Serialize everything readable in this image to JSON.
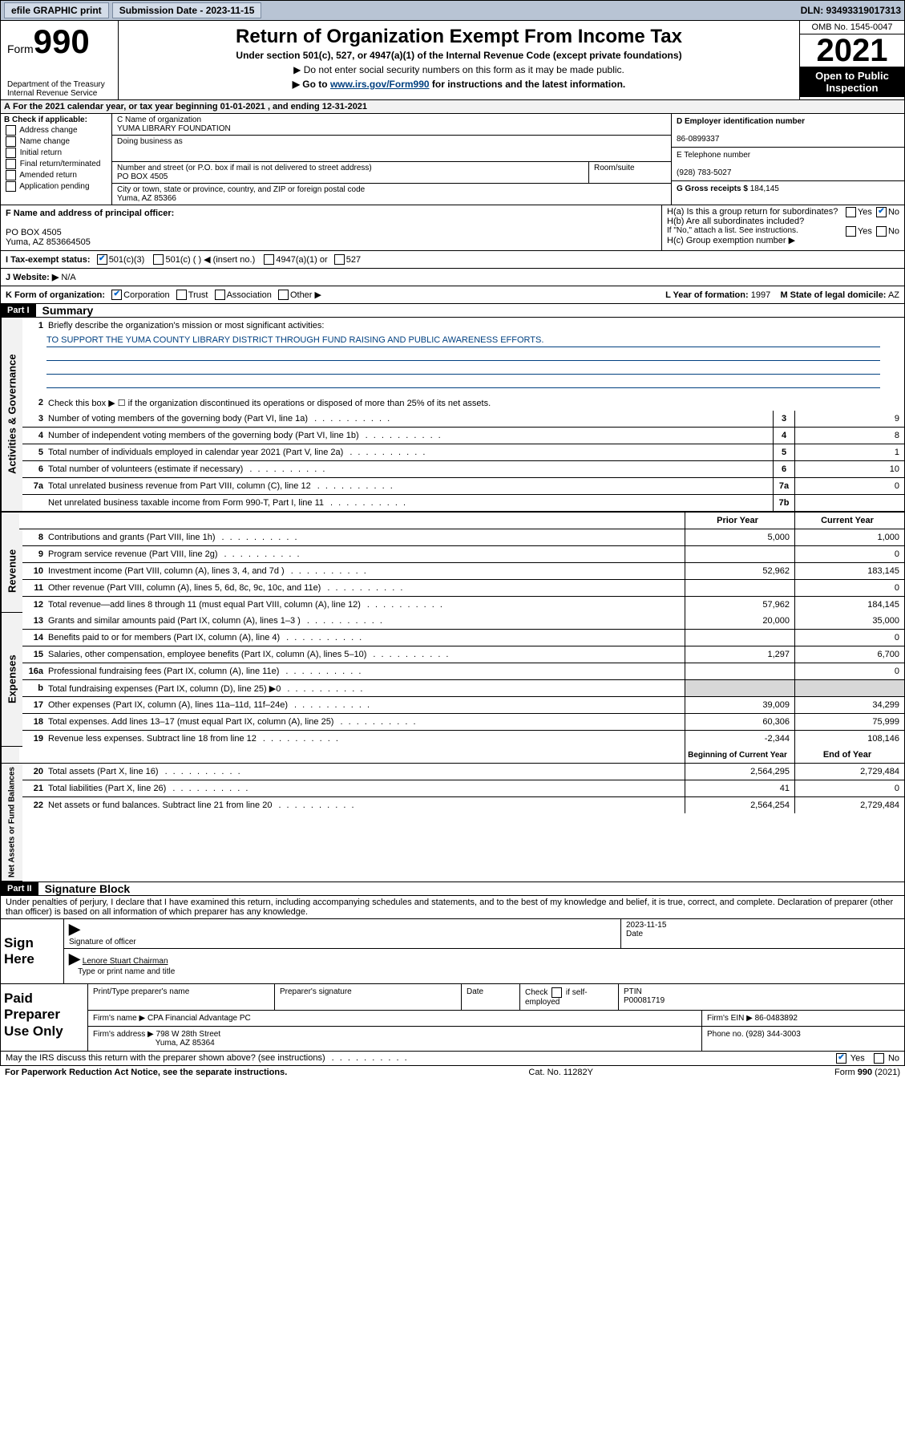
{
  "top_bar": {
    "efile": "efile GRAPHIC print",
    "sub_label": "Submission Date - 2023-11-15",
    "dln": "DLN: 93493319017313"
  },
  "header": {
    "form_word": "Form",
    "form_number": "990",
    "dept": "Department of the Treasury",
    "irs": "Internal Revenue Service",
    "title": "Return of Organization Exempt From Income Tax",
    "subtitle": "Under section 501(c), 527, or 4947(a)(1) of the Internal Revenue Code (except private foundations)",
    "note1": "▶ Do not enter social security numbers on this form as it may be made public.",
    "note2_pre": "▶ Go to ",
    "note2_link": "www.irs.gov/Form990",
    "note2_post": " for instructions and the latest information.",
    "omb": "OMB No. 1545-0047",
    "year": "2021",
    "open_public": "Open to Public Inspection"
  },
  "tax_year": "For the 2021 calendar year, or tax year beginning 01-01-2021  , and ending 12-31-2021",
  "section_b": {
    "title": "B Check if applicable:",
    "items": [
      "Address change",
      "Name change",
      "Initial return",
      "Final return/terminated",
      "Amended return",
      "Application pending"
    ]
  },
  "section_c": {
    "name_label": "C Name of organization",
    "name": "YUMA LIBRARY FOUNDATION",
    "dba_label": "Doing business as",
    "addr_label": "Number and street (or P.O. box if mail is not delivered to street address)",
    "room_label": "Room/suite",
    "addr": "PO BOX 4505",
    "city_label": "City or town, state or province, country, and ZIP or foreign postal code",
    "city": "Yuma, AZ  85366"
  },
  "section_d": {
    "ein_label": "D Employer identification number",
    "ein": "86-0899337",
    "phone_label": "E Telephone number",
    "phone": "(928) 783-5027",
    "gross_label": "G Gross receipts $",
    "gross": "184,145"
  },
  "section_f": {
    "label": "F Name and address of principal officer:",
    "line1": "PO BOX 4505",
    "line2": "Yuma, AZ  853664505"
  },
  "section_h": {
    "a": "H(a) Is this a group return for subordinates?",
    "b": "H(b) Are all subordinates included?",
    "no_note": "If \"No,\" attach a list. See instructions.",
    "c": "H(c) Group exemption number ▶",
    "yes": "Yes",
    "no": "No"
  },
  "row_i": {
    "label": "I   Tax-exempt status:",
    "opt1": "501(c)(3)",
    "opt2": "501(c) (  ) ◀ (insert no.)",
    "opt3": "4947(a)(1) or",
    "opt4": "527"
  },
  "row_j": {
    "label": "J   Website: ▶",
    "value": "N/A"
  },
  "row_k": {
    "label": "K Form of organization:",
    "opts": [
      "Corporation",
      "Trust",
      "Association",
      "Other ▶"
    ],
    "year_label": "L Year of formation:",
    "year": "1997",
    "state_label": "M State of legal domicile:",
    "state": "AZ"
  },
  "part1": {
    "label": "Part I",
    "title": "Summary"
  },
  "gov": {
    "label": "Activities & Governance",
    "l1": "Briefly describe the organization's mission or most significant activities:",
    "l1_text": "TO SUPPORT THE YUMA COUNTY LIBRARY DISTRICT THROUGH FUND RAISING AND PUBLIC AWARENESS EFFORTS.",
    "l2": "Check this box ▶ ☐  if the organization discontinued its operations or disposed of more than 25% of its net assets.",
    "lines": [
      {
        "n": "3",
        "d": "Number of voting members of the governing body (Part VI, line 1a)",
        "box": "3",
        "v": "9"
      },
      {
        "n": "4",
        "d": "Number of independent voting members of the governing body (Part VI, line 1b)",
        "box": "4",
        "v": "8"
      },
      {
        "n": "5",
        "d": "Total number of individuals employed in calendar year 2021 (Part V, line 2a)",
        "box": "5",
        "v": "1"
      },
      {
        "n": "6",
        "d": "Total number of volunteers (estimate if necessary)",
        "box": "6",
        "v": "10"
      },
      {
        "n": "7a",
        "d": "Total unrelated business revenue from Part VIII, column (C), line 12",
        "box": "7a",
        "v": "0"
      },
      {
        "n": "",
        "d": "Net unrelated business taxable income from Form 990-T, Part I, line 11",
        "box": "7b",
        "v": ""
      }
    ]
  },
  "twocol_header": {
    "prior": "Prior Year",
    "current": "Current Year"
  },
  "revenue": {
    "label": "Revenue",
    "lines": [
      {
        "n": "8",
        "d": "Contributions and grants (Part VIII, line 1h)",
        "p": "5,000",
        "c": "1,000"
      },
      {
        "n": "9",
        "d": "Program service revenue (Part VIII, line 2g)",
        "p": "",
        "c": "0"
      },
      {
        "n": "10",
        "d": "Investment income (Part VIII, column (A), lines 3, 4, and 7d )",
        "p": "52,962",
        "c": "183,145"
      },
      {
        "n": "11",
        "d": "Other revenue (Part VIII, column (A), lines 5, 6d, 8c, 9c, 10c, and 11e)",
        "p": "",
        "c": "0"
      },
      {
        "n": "12",
        "d": "Total revenue—add lines 8 through 11 (must equal Part VIII, column (A), line 12)",
        "p": "57,962",
        "c": "184,145"
      }
    ]
  },
  "expenses": {
    "label": "Expenses",
    "lines": [
      {
        "n": "13",
        "d": "Grants and similar amounts paid (Part IX, column (A), lines 1–3 )",
        "p": "20,000",
        "c": "35,000"
      },
      {
        "n": "14",
        "d": "Benefits paid to or for members (Part IX, column (A), line 4)",
        "p": "",
        "c": "0"
      },
      {
        "n": "15",
        "d": "Salaries, other compensation, employee benefits (Part IX, column (A), lines 5–10)",
        "p": "1,297",
        "c": "6,700"
      },
      {
        "n": "16a",
        "d": "Professional fundraising fees (Part IX, column (A), line 11e)",
        "p": "",
        "c": "0"
      },
      {
        "n": "b",
        "d": "Total fundraising expenses (Part IX, column (D), line 25) ▶0",
        "p": "shaded",
        "c": "shaded"
      },
      {
        "n": "17",
        "d": "Other expenses (Part IX, column (A), lines 11a–11d, 11f–24e)",
        "p": "39,009",
        "c": "34,299"
      },
      {
        "n": "18",
        "d": "Total expenses. Add lines 13–17 (must equal Part IX, column (A), line 25)",
        "p": "60,306",
        "c": "75,999"
      },
      {
        "n": "19",
        "d": "Revenue less expenses. Subtract line 18 from line 12",
        "p": "-2,344",
        "c": "108,146"
      }
    ]
  },
  "net_header": {
    "begin": "Beginning of Current Year",
    "end": "End of Year"
  },
  "netassets": {
    "label": "Net Assets or Fund Balances",
    "lines": [
      {
        "n": "20",
        "d": "Total assets (Part X, line 16)",
        "p": "2,564,295",
        "c": "2,729,484"
      },
      {
        "n": "21",
        "d": "Total liabilities (Part X, line 26)",
        "p": "41",
        "c": "0"
      },
      {
        "n": "22",
        "d": "Net assets or fund balances. Subtract line 21 from line 20",
        "p": "2,564,254",
        "c": "2,729,484"
      }
    ]
  },
  "part2": {
    "label": "Part II",
    "title": "Signature Block",
    "text": "Under penalties of perjury, I declare that I have examined this return, including accompanying schedules and statements, and to the best of my knowledge and belief, it is true, correct, and complete. Declaration of preparer (other than officer) is based on all information of which preparer has any knowledge."
  },
  "sign": {
    "label": "Sign Here",
    "sig_label": "Signature of officer",
    "date_label": "Date",
    "date": "2023-11-15",
    "name": "Lenore Stuart  Chairman",
    "name_label": "Type or print name and title"
  },
  "paid": {
    "label": "Paid Preparer Use Only",
    "h1": "Print/Type preparer's name",
    "h2": "Preparer's signature",
    "h3": "Date",
    "h4a": "Check",
    "h4b": "if self-employed",
    "h5": "PTIN",
    "ptin": "P00081719",
    "firm_name_label": "Firm's name    ▶",
    "firm_name": "CPA Financial Advantage PC",
    "firm_ein_label": "Firm's EIN ▶",
    "firm_ein": "86-0483892",
    "firm_addr_label": "Firm's address ▶",
    "firm_addr1": "798 W 28th Street",
    "firm_addr2": "Yuma, AZ  85364",
    "phone_label": "Phone no.",
    "phone": "(928) 344-3003"
  },
  "footer": {
    "q": "May the IRS discuss this return with the preparer shown above? (see instructions)",
    "yes": "Yes",
    "no": "No"
  },
  "pra": {
    "left": "For Paperwork Reduction Act Notice, see the separate instructions.",
    "mid": "Cat. No. 11282Y",
    "right": "Form 990 (2021)"
  }
}
